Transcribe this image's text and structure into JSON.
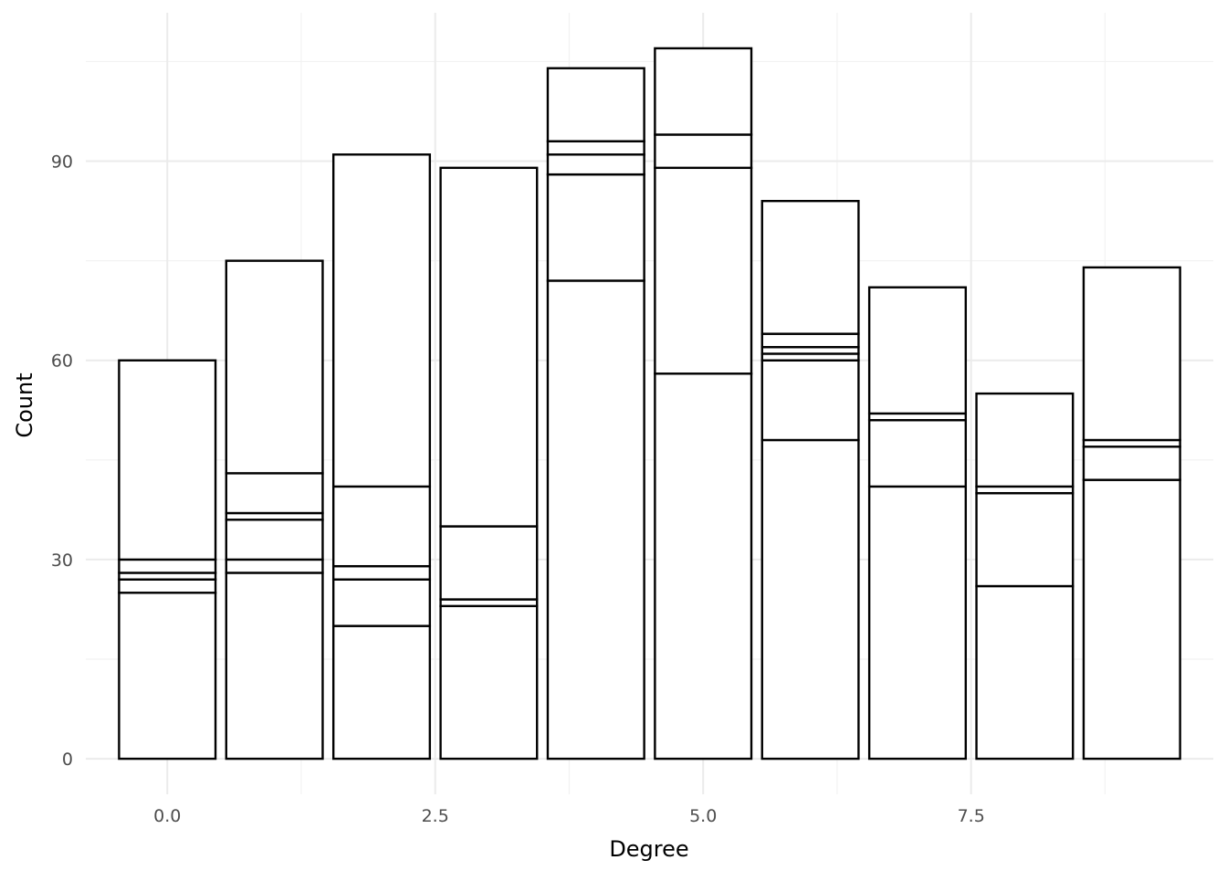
{
  "chart_data": {
    "type": "bar",
    "stacked": true,
    "title": "",
    "xlabel": "Degree",
    "ylabel": "Count",
    "x": [
      0,
      1,
      2,
      3,
      4,
      5,
      6,
      7,
      8,
      9
    ],
    "stack_boundaries": [
      [
        25,
        27,
        28,
        30,
        60
      ],
      [
        28,
        30,
        36,
        37,
        43,
        75
      ],
      [
        20,
        27,
        29,
        41,
        91
      ],
      [
        23,
        24,
        35,
        89
      ],
      [
        72,
        88,
        91,
        93,
        104
      ],
      [
        58,
        89,
        94,
        107
      ],
      [
        48,
        60,
        61,
        62,
        64,
        84
      ],
      [
        41,
        51,
        52,
        71
      ],
      [
        26,
        40,
        41,
        55
      ],
      [
        42,
        47,
        48,
        74
      ]
    ],
    "totals": [
      60,
      75,
      91,
      89,
      104,
      107,
      84,
      71,
      55,
      74
    ],
    "bar_fill": "#ffffff",
    "bar_stroke": "#000000",
    "xlim": [
      -0.76,
      9.76
    ],
    "ylim": [
      -5.35,
      112.35
    ],
    "x_ticks": [
      0,
      2.5,
      5,
      7.5
    ],
    "x_tick_labels": [
      "0.0",
      "2.5",
      "5.0",
      "7.5"
    ],
    "y_ticks": [
      0,
      30,
      60,
      90
    ],
    "y_tick_labels": [
      "0",
      "30",
      "60",
      "90"
    ],
    "grid": true,
    "legend": "none"
  }
}
